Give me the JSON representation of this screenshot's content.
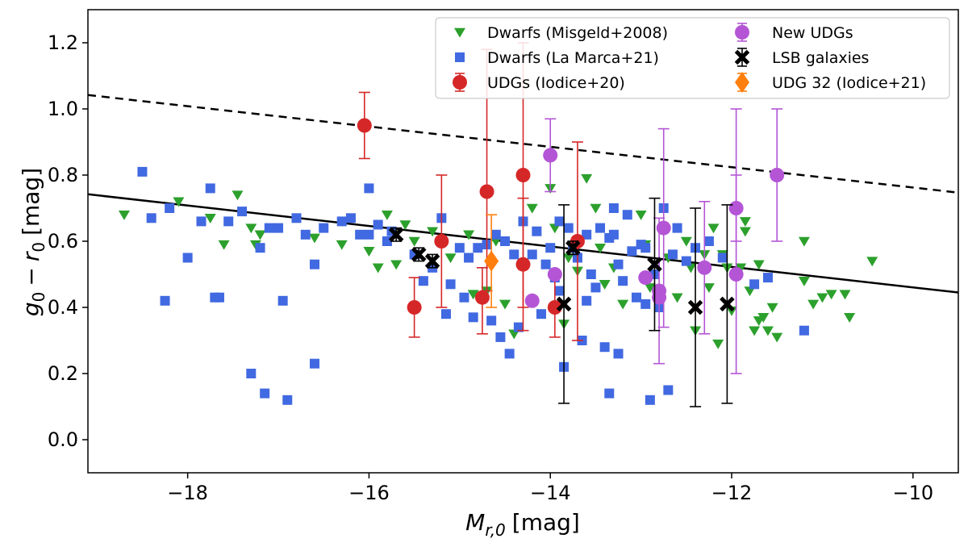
{
  "chart_data": {
    "type": "scatter",
    "xlabel_var": "M",
    "xlabel_sub": "r,0",
    "xlabel_unit": "[mag]",
    "ylabel_g": "g",
    "ylabel_r": "r",
    "ylabel_sub": "0",
    "ylabel_minus": "−",
    "ylabel_unit": "[mag]",
    "xlim": [
      -19.1,
      -9.5
    ],
    "ylim": [
      -0.1,
      1.3
    ],
    "xticks": [
      -18,
      -16,
      -14,
      -12,
      -10
    ],
    "xtick_labels": [
      "−18",
      "−16",
      "−14",
      "−12",
      "−10"
    ],
    "yticks": [
      0.0,
      0.2,
      0.4,
      0.6,
      0.8,
      1.0,
      1.2
    ],
    "ytick_labels": [
      "0.0",
      "0.2",
      "0.4",
      "0.6",
      "0.8",
      "1.0",
      "1.2"
    ],
    "legend_position": "top-right",
    "colors": {
      "misgeld": "#2ca02c",
      "lamarca": "#4169e1",
      "udg_iodice20": "#d62728",
      "new_udg": "#b455d6",
      "lsb": "#000000",
      "udg32": "#ff7f0e"
    },
    "lines": [
      {
        "name": "fit",
        "style": "solid",
        "x": [
          -19.1,
          -9.5
        ],
        "y": [
          0.742,
          0.445
        ]
      },
      {
        "name": "upper",
        "style": "dashed",
        "x": [
          -19.1,
          -9.5
        ],
        "y": [
          1.042,
          0.747
        ]
      }
    ],
    "series": [
      {
        "name": "Dwarfs (Misgeld+2008)",
        "key": "misgeld",
        "marker": "triangle-down",
        "points": [
          [
            -18.7,
            0.68
          ],
          [
            -18.1,
            0.72
          ],
          [
            -17.75,
            0.67
          ],
          [
            -17.45,
            0.74
          ],
          [
            -17.3,
            0.64
          ],
          [
            -17.25,
            0.59
          ],
          [
            -17.2,
            0.62
          ],
          [
            -16.6,
            0.61
          ],
          [
            -16.0,
            0.57
          ],
          [
            -15.9,
            0.52
          ],
          [
            -15.8,
            0.68
          ],
          [
            -15.6,
            0.65
          ],
          [
            -15.5,
            0.6
          ],
          [
            -15.3,
            0.63
          ],
          [
            -15.1,
            0.55
          ],
          [
            -14.9,
            0.62
          ],
          [
            -14.7,
            0.45
          ],
          [
            -14.6,
            0.6
          ],
          [
            -14.5,
            0.41
          ],
          [
            -14.4,
            0.32
          ],
          [
            -14.2,
            0.7
          ],
          [
            -14.0,
            0.76
          ],
          [
            -13.95,
            0.64
          ],
          [
            -13.85,
            0.35
          ],
          [
            -13.8,
            0.55
          ],
          [
            -13.6,
            0.79
          ],
          [
            -13.5,
            0.7
          ],
          [
            -13.4,
            0.47
          ],
          [
            -13.3,
            0.52
          ],
          [
            -13.2,
            0.41
          ],
          [
            -13.0,
            0.68
          ],
          [
            -12.95,
            0.59
          ],
          [
            -12.9,
            0.46
          ],
          [
            -12.7,
            0.55
          ],
          [
            -12.6,
            0.43
          ],
          [
            -12.5,
            0.6
          ],
          [
            -12.4,
            0.33
          ],
          [
            -12.3,
            0.56
          ],
          [
            -12.25,
            0.46
          ],
          [
            -12.2,
            0.64
          ],
          [
            -12.15,
            0.29
          ],
          [
            -12.1,
            0.56
          ],
          [
            -12.0,
            0.39
          ],
          [
            -11.9,
            0.52
          ],
          [
            -11.85,
            0.63
          ],
          [
            -11.8,
            0.45
          ],
          [
            -11.75,
            0.33
          ],
          [
            -11.7,
            0.53
          ],
          [
            -11.65,
            0.37
          ],
          [
            -11.6,
            0.33
          ],
          [
            -11.55,
            0.4
          ],
          [
            -11.5,
            0.31
          ],
          [
            -11.2,
            0.6
          ],
          [
            -11.2,
            0.48
          ],
          [
            -11.1,
            0.41
          ],
          [
            -11.0,
            0.43
          ],
          [
            -10.9,
            0.44
          ],
          [
            -10.75,
            0.44
          ],
          [
            -10.7,
            0.37
          ],
          [
            -10.45,
            0.54
          ],
          [
            -11.85,
            0.66
          ],
          [
            -11.7,
            0.36
          ],
          [
            -12.45,
            0.52
          ],
          [
            -12.05,
            0.52
          ],
          [
            -13.7,
            0.51
          ],
          [
            -13.45,
            0.58
          ],
          [
            -15.7,
            0.53
          ],
          [
            -14.85,
            0.44
          ],
          [
            -16.3,
            0.59
          ],
          [
            -17.6,
            0.59
          ]
        ]
      },
      {
        "name": "Dwarfs (La Marca+21)",
        "key": "lamarca",
        "marker": "square",
        "points": [
          [
            -18.5,
            0.81
          ],
          [
            -18.4,
            0.67
          ],
          [
            -18.2,
            0.7
          ],
          [
            -18.25,
            0.42
          ],
          [
            -18.0,
            0.55
          ],
          [
            -17.85,
            0.66
          ],
          [
            -17.75,
            0.76
          ],
          [
            -17.65,
            0.43
          ],
          [
            -17.7,
            0.43
          ],
          [
            -17.55,
            0.66
          ],
          [
            -17.4,
            0.69
          ],
          [
            -17.3,
            0.2
          ],
          [
            -17.2,
            0.58
          ],
          [
            -17.15,
            0.14
          ],
          [
            -17.1,
            0.64
          ],
          [
            -16.95,
            0.42
          ],
          [
            -16.9,
            0.12
          ],
          [
            -16.8,
            0.67
          ],
          [
            -16.7,
            0.62
          ],
          [
            -16.6,
            0.53
          ],
          [
            -16.6,
            0.23
          ],
          [
            -16.5,
            0.64
          ],
          [
            -16.3,
            0.66
          ],
          [
            -16.2,
            0.67
          ],
          [
            -16.0,
            0.76
          ],
          [
            -16.0,
            0.62
          ],
          [
            -15.9,
            0.65
          ],
          [
            -15.8,
            0.6
          ],
          [
            -15.75,
            0.63
          ],
          [
            -15.5,
            0.56
          ],
          [
            -15.3,
            0.52
          ],
          [
            -15.2,
            0.67
          ],
          [
            -15.1,
            0.47
          ],
          [
            -15.0,
            0.58
          ],
          [
            -14.9,
            0.55
          ],
          [
            -14.85,
            0.37
          ],
          [
            -14.8,
            0.58
          ],
          [
            -14.7,
            0.59
          ],
          [
            -14.6,
            0.62
          ],
          [
            -14.55,
            0.31
          ],
          [
            -14.5,
            0.6
          ],
          [
            -14.45,
            0.26
          ],
          [
            -14.4,
            0.56
          ],
          [
            -14.3,
            0.66
          ],
          [
            -14.2,
            0.56
          ],
          [
            -14.1,
            0.38
          ],
          [
            -14.0,
            0.58
          ],
          [
            -13.95,
            0.49
          ],
          [
            -13.9,
            0.66
          ],
          [
            -13.85,
            0.22
          ],
          [
            -13.8,
            0.64
          ],
          [
            -13.7,
            0.55
          ],
          [
            -13.6,
            0.62
          ],
          [
            -13.55,
            0.5
          ],
          [
            -13.5,
            0.46
          ],
          [
            -13.45,
            0.64
          ],
          [
            -13.4,
            0.28
          ],
          [
            -13.35,
            0.61
          ],
          [
            -13.3,
            0.62
          ],
          [
            -13.25,
            0.53
          ],
          [
            -13.2,
            0.48
          ],
          [
            -13.15,
            0.68
          ],
          [
            -13.1,
            0.57
          ],
          [
            -13.05,
            0.43
          ],
          [
            -13.0,
            0.59
          ],
          [
            -12.95,
            0.58
          ],
          [
            -12.9,
            0.12
          ],
          [
            -12.85,
            0.5
          ],
          [
            -12.8,
            0.4
          ],
          [
            -12.75,
            0.7
          ],
          [
            -12.7,
            0.15
          ],
          [
            -12.65,
            0.56
          ],
          [
            -12.6,
            0.64
          ],
          [
            -12.5,
            0.54
          ],
          [
            -12.4,
            0.58
          ],
          [
            -12.3,
            0.52
          ],
          [
            -12.25,
            0.6
          ],
          [
            -12.1,
            0.55
          ],
          [
            -11.75,
            0.47
          ],
          [
            -11.6,
            0.49
          ],
          [
            -11.2,
            0.33
          ],
          [
            -14.95,
            0.43
          ],
          [
            -14.65,
            0.36
          ],
          [
            -14.35,
            0.34
          ],
          [
            -13.65,
            0.3
          ],
          [
            -13.35,
            0.14
          ],
          [
            -13.25,
            0.26
          ],
          [
            -13.75,
            0.58
          ],
          [
            -14.15,
            0.63
          ],
          [
            -15.4,
            0.48
          ],
          [
            -15.15,
            0.38
          ],
          [
            -16.1,
            0.62
          ],
          [
            -17.0,
            0.64
          ],
          [
            -13.9,
            0.45
          ],
          [
            -13.6,
            0.42
          ],
          [
            -12.95,
            0.41
          ],
          [
            -13.3,
            0.7
          ],
          [
            -14.05,
            0.53
          ]
        ]
      },
      {
        "name": "UDGs (Iodice+20)",
        "key": "udg_iodice20",
        "marker": "circle",
        "points": [
          [
            -16.05,
            0.95,
            0.1,
            0.1
          ],
          [
            -15.5,
            0.4,
            0.09,
            0.09
          ],
          [
            -15.2,
            0.6,
            0.2,
            0.2
          ],
          [
            -14.75,
            0.43,
            0.11,
            0.09
          ],
          [
            -14.7,
            0.75,
            0.3,
            0.43
          ],
          [
            -14.3,
            0.8,
            0.4,
            0.4
          ],
          [
            -14.3,
            0.53,
            0.2,
            0.2
          ],
          [
            -13.95,
            0.4,
            0.09,
            0.09
          ],
          [
            -13.7,
            0.6,
            0.3,
            0.3
          ]
        ]
      },
      {
        "name": "New UDGs",
        "key": "new_udg",
        "marker": "circle",
        "points": [
          [
            -14.0,
            0.86,
            0.11,
            0.11
          ],
          [
            -14.2,
            0.42,
            0.0,
            0.0
          ],
          [
            -13.95,
            0.5,
            0.0,
            0.0
          ],
          [
            -12.95,
            0.49,
            0.0,
            0.0
          ],
          [
            -12.8,
            0.43,
            0.0,
            0.0
          ],
          [
            -12.8,
            0.45,
            0.22,
            0.22
          ],
          [
            -12.75,
            0.64,
            0.3,
            0.3
          ],
          [
            -12.3,
            0.52,
            0.2,
            0.2
          ],
          [
            -11.95,
            0.5,
            0.3,
            0.3
          ],
          [
            -11.95,
            0.7,
            0.1,
            0.3
          ],
          [
            -11.5,
            0.8,
            0.2,
            0.2
          ]
        ]
      },
      {
        "name": "LSB galaxies",
        "key": "lsb",
        "marker": "x",
        "points": [
          [
            -15.7,
            0.62,
            0.02,
            0.02
          ],
          [
            -15.45,
            0.56,
            0.02,
            0.02
          ],
          [
            -15.3,
            0.54,
            0.02,
            0.02
          ],
          [
            -13.85,
            0.41,
            0.3,
            0.3
          ],
          [
            -13.75,
            0.58,
            0.02,
            0.02
          ],
          [
            -12.85,
            0.53,
            0.2,
            0.2
          ],
          [
            -12.4,
            0.4,
            0.3,
            0.3
          ],
          [
            -12.05,
            0.41,
            0.3,
            0.3
          ]
        ]
      },
      {
        "name": "UDG 32 (Iodice+21)",
        "key": "udg32",
        "marker": "diamond",
        "points": [
          [
            -14.65,
            0.54,
            0.14,
            0.14
          ]
        ]
      }
    ]
  }
}
